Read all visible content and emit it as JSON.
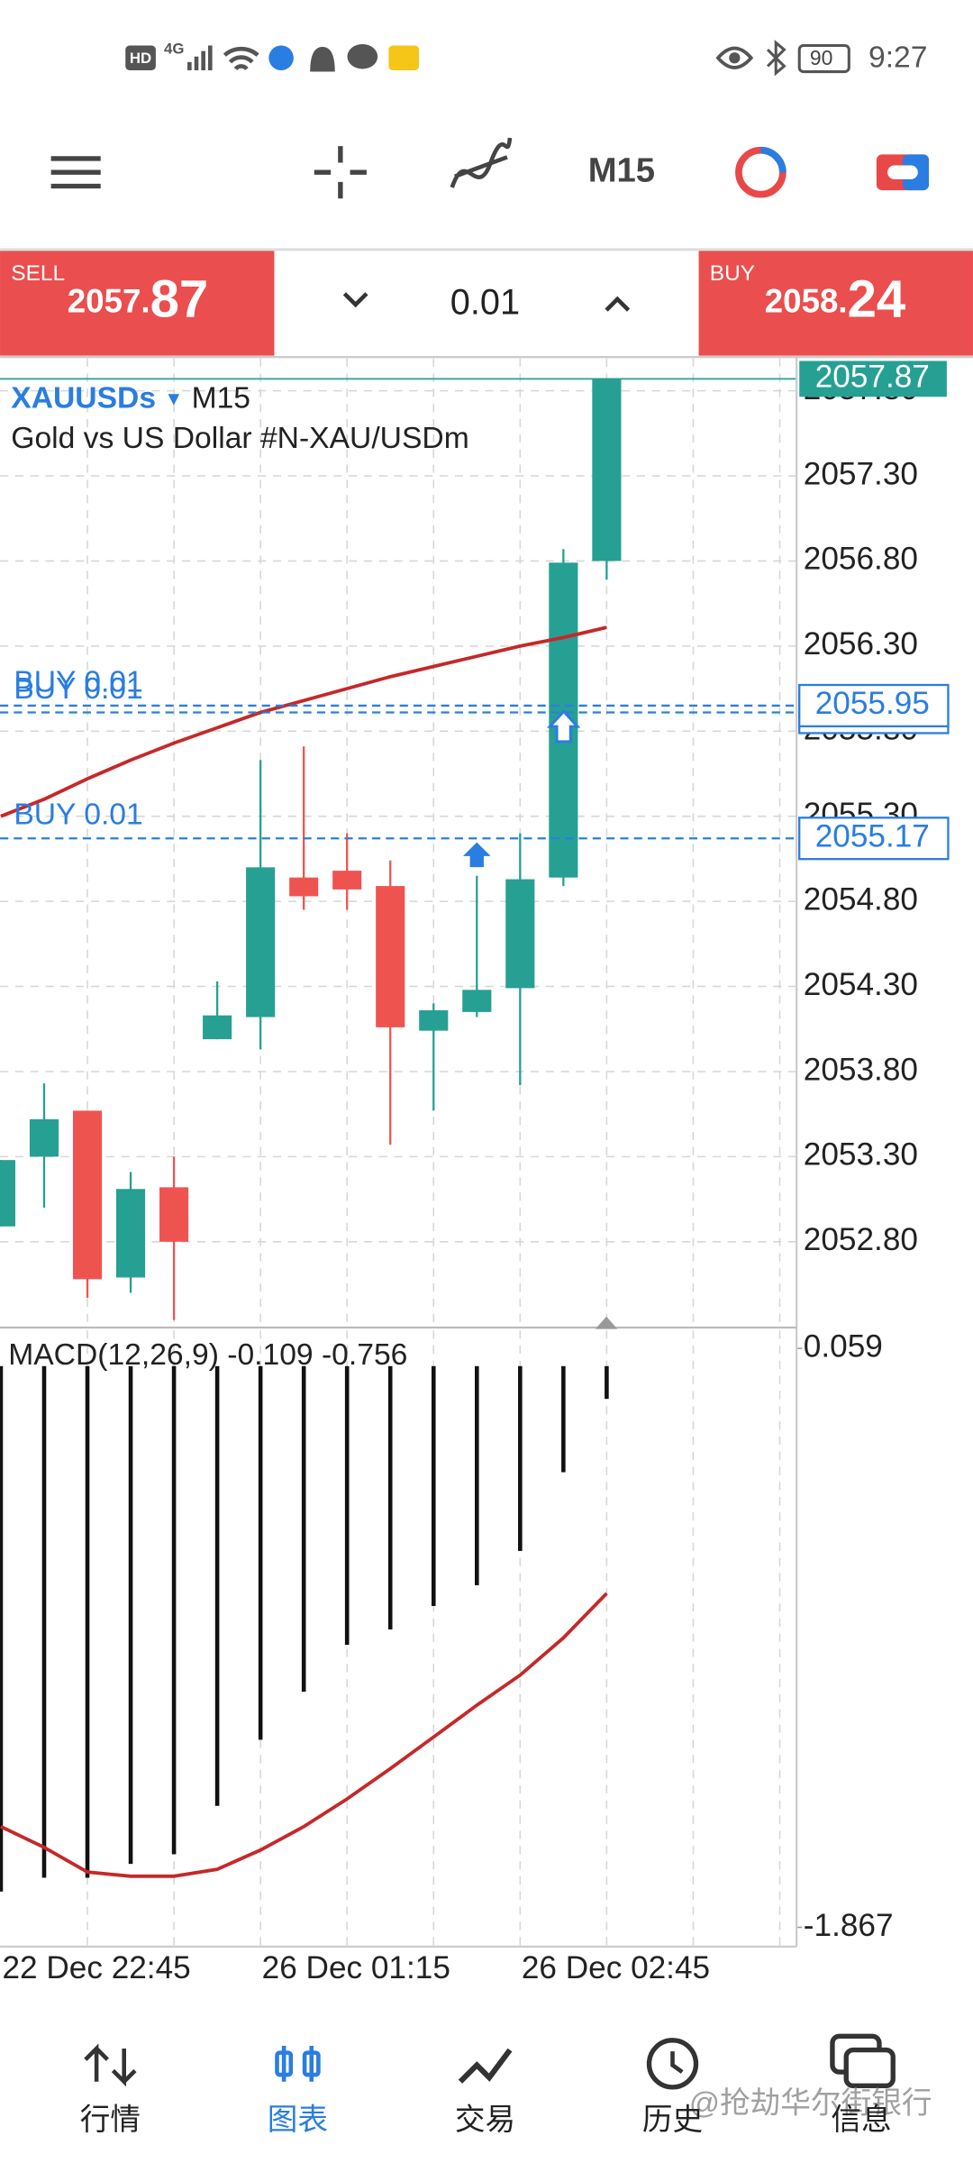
{
  "status_bar": {
    "hd": "HD",
    "network": "4G",
    "battery": "90",
    "time": "9:27"
  },
  "toolbar": {
    "timeframe": "M15"
  },
  "trade_bar": {
    "sell": {
      "label": "SELL",
      "price_head": "2057.",
      "price_tail": "87"
    },
    "lot": "0.01",
    "buy": {
      "label": "BUY",
      "price_head": "2058.",
      "price_tail": "24"
    }
  },
  "chart": {
    "symbol": "XAUUSDs",
    "timeframe": "M15",
    "description": "Gold vs US Dollar #N-XAU/USDm",
    "ylim": [
      2052.32,
      2057.99
    ],
    "yticks": [
      {
        "value": 2057.8,
        "label": "2057.80"
      },
      {
        "value": 2057.3,
        "label": "2057.30"
      },
      {
        "value": 2056.8,
        "label": "2056.80"
      },
      {
        "value": 2056.3,
        "label": "2056.30"
      },
      {
        "value": 2055.8,
        "label": "2055.80"
      },
      {
        "value": 2055.3,
        "label": "2055.30"
      },
      {
        "value": 2054.8,
        "label": "2054.80"
      },
      {
        "value": 2054.3,
        "label": "2054.30"
      },
      {
        "value": 2053.8,
        "label": "2053.80"
      },
      {
        "value": 2053.3,
        "label": "2053.30"
      },
      {
        "value": 2052.8,
        "label": "2052.80"
      }
    ],
    "categories": [
      "22 Dec 22:45",
      null,
      null,
      null,
      null,
      null,
      "26 Dec 01:15",
      null,
      null,
      null,
      null,
      null,
      "26 Dec 02:45",
      null,
      null
    ],
    "open": [
      2052.89,
      2053.3,
      2053.57,
      2052.59,
      2053.12,
      2053.99,
      2054.12,
      2054.94,
      2054.98,
      2054.89,
      2054.04,
      2054.15,
      2054.29,
      2054.94,
      2056.8
    ],
    "high": [
      2053.28,
      2053.73,
      2053.57,
      2053.21,
      2053.3,
      2054.33,
      2055.63,
      2055.71,
      2055.2,
      2055.04,
      2054.2,
      2054.95,
      2055.2,
      2056.87,
      2057.87
    ],
    "low": [
      2052.89,
      2053.0,
      2052.47,
      2052.5,
      2052.34,
      2053.99,
      2053.93,
      2054.75,
      2054.75,
      2053.37,
      2053.57,
      2054.12,
      2053.72,
      2054.89,
      2056.69
    ],
    "close": [
      2053.28,
      2053.52,
      2052.58,
      2053.11,
      2052.8,
      2054.13,
      2055.0,
      2054.83,
      2054.87,
      2054.06,
      2054.16,
      2054.28,
      2054.93,
      2056.79,
      2057.87
    ],
    "up_color": "#26a092",
    "down_color": "#ef5350",
    "ma": {
      "color": "#c62828",
      "values": [
        2055.3,
        2055.4,
        2055.52,
        2055.63,
        2055.73,
        2055.82,
        2055.91,
        2055.98,
        2056.05,
        2056.12,
        2056.18,
        2056.24,
        2056.3,
        2056.35,
        2056.41
      ]
    },
    "current_price": 2057.87,
    "orders": [
      {
        "label": "BUY 0.01",
        "price": 2055.17
      },
      {
        "label": "BUY 0.01",
        "price": 2055.91
      },
      {
        "label": "BUY 0.01",
        "price": 2055.95
      }
    ],
    "order_color": "#2a7de1",
    "grid": true,
    "macd": {
      "title": "MACD(12,26,9) -0.109 -0.756",
      "ylim": [
        -1.931,
        0.119
      ],
      "yticks": [
        0.059,
        -1.867
      ],
      "histogram": [
        -1.748,
        -1.702,
        -1.702,
        -1.656,
        -1.624,
        -1.463,
        -1.243,
        -1.083,
        -0.927,
        -0.876,
        -0.798,
        -0.729,
        -0.615,
        -0.353,
        -0.109
      ],
      "signal": {
        "color": "#c62828",
        "values": [
          -1.532,
          -1.601,
          -1.683,
          -1.697,
          -1.697,
          -1.674,
          -1.61,
          -1.532,
          -1.44,
          -1.339,
          -1.234,
          -1.128,
          -1.028,
          -0.904,
          -0.756
        ]
      }
    }
  },
  "nav": {
    "active_index": 1,
    "items": [
      {
        "label": "行情"
      },
      {
        "label": "图表"
      },
      {
        "label": "交易"
      },
      {
        "label": "历史"
      },
      {
        "label": "信息"
      }
    ]
  },
  "watermark": "@抢劫华尔街银行"
}
